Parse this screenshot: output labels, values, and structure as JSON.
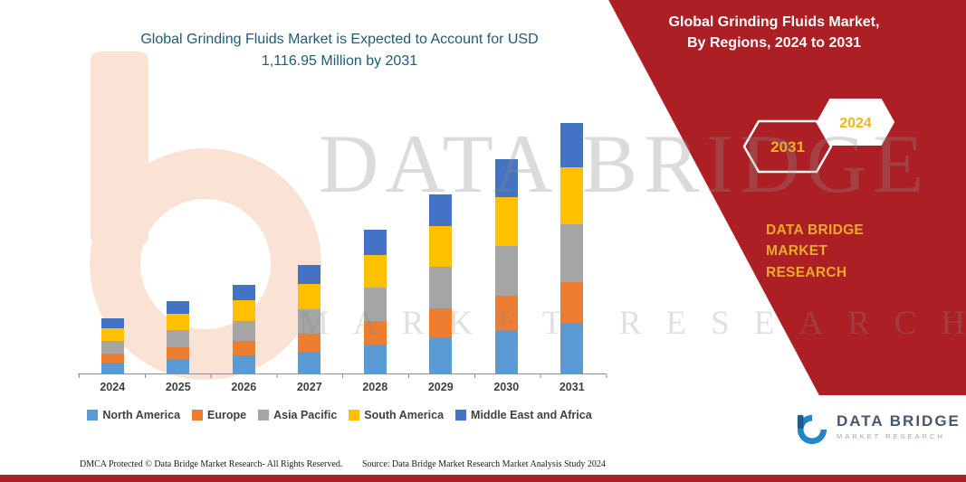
{
  "page": {
    "title_line1": "Global Grinding Fluids Market is Expected to Account for USD",
    "title_line2": "1,116.95 Million by 2031"
  },
  "banner": {
    "heading_line1": "Global Grinding Fluids Market,",
    "heading_line2": "By Regions, 2024 to 2031",
    "hex_left_label": "2031",
    "hex_right_label": "2024",
    "brand_line1": "DATA BRIDGE MARKET",
    "brand_line2": "RESEARCH",
    "color": "#AC1F24",
    "accent_yellow": "#F2B51D"
  },
  "watermark": {
    "line1": "DATA BRIDGE",
    "line2": "MARKET RESEARCH"
  },
  "chart_data": {
    "type": "bar",
    "stacked": true,
    "title": "Global Grinding Fluids Market is Expected to Account for USD 1,116.95 Million by 2031",
    "categories": [
      "2024",
      "2025",
      "2026",
      "2027",
      "2028",
      "2029",
      "2030",
      "2031"
    ],
    "series": [
      {
        "name": "North America",
        "color": "#5B9BD5",
        "values": [
          50,
          65,
          80,
          98,
          130,
          162,
          193,
          226
        ]
      },
      {
        "name": "Europe",
        "color": "#ED7D31",
        "values": [
          40,
          52,
          64,
          78,
          104,
          129,
          155,
          181
        ]
      },
      {
        "name": "Asia Pacific",
        "color": "#A5A5A5",
        "values": [
          57,
          75,
          91,
          112,
          148,
          184,
          221,
          258
        ]
      },
      {
        "name": "South America",
        "color": "#FFC000",
        "values": [
          56,
          73,
          90,
          110,
          146,
          182,
          217,
          254
        ]
      },
      {
        "name": "Middle East and Africa",
        "color": "#4472C4",
        "values": [
          43,
          57,
          70,
          86,
          113,
          141,
          169,
          198
        ]
      }
    ],
    "totals_usd_million": [
      246,
      322,
      395,
      484,
      641,
      798,
      955,
      1117
    ],
    "unit": "USD Million",
    "xlabel": "",
    "ylabel": "",
    "ylim": [
      0,
      1200
    ],
    "grid": false,
    "legend_position": "bottom"
  },
  "footer": {
    "left": "DMCA Protected © Data Bridge Market Research-  All Rights Reserved.",
    "source": "Source: Data Bridge Market Research  Market Analysis Study 2024"
  },
  "logo": {
    "name": "DATA BRIDGE",
    "subtitle": "MARKET RESEARCH"
  }
}
